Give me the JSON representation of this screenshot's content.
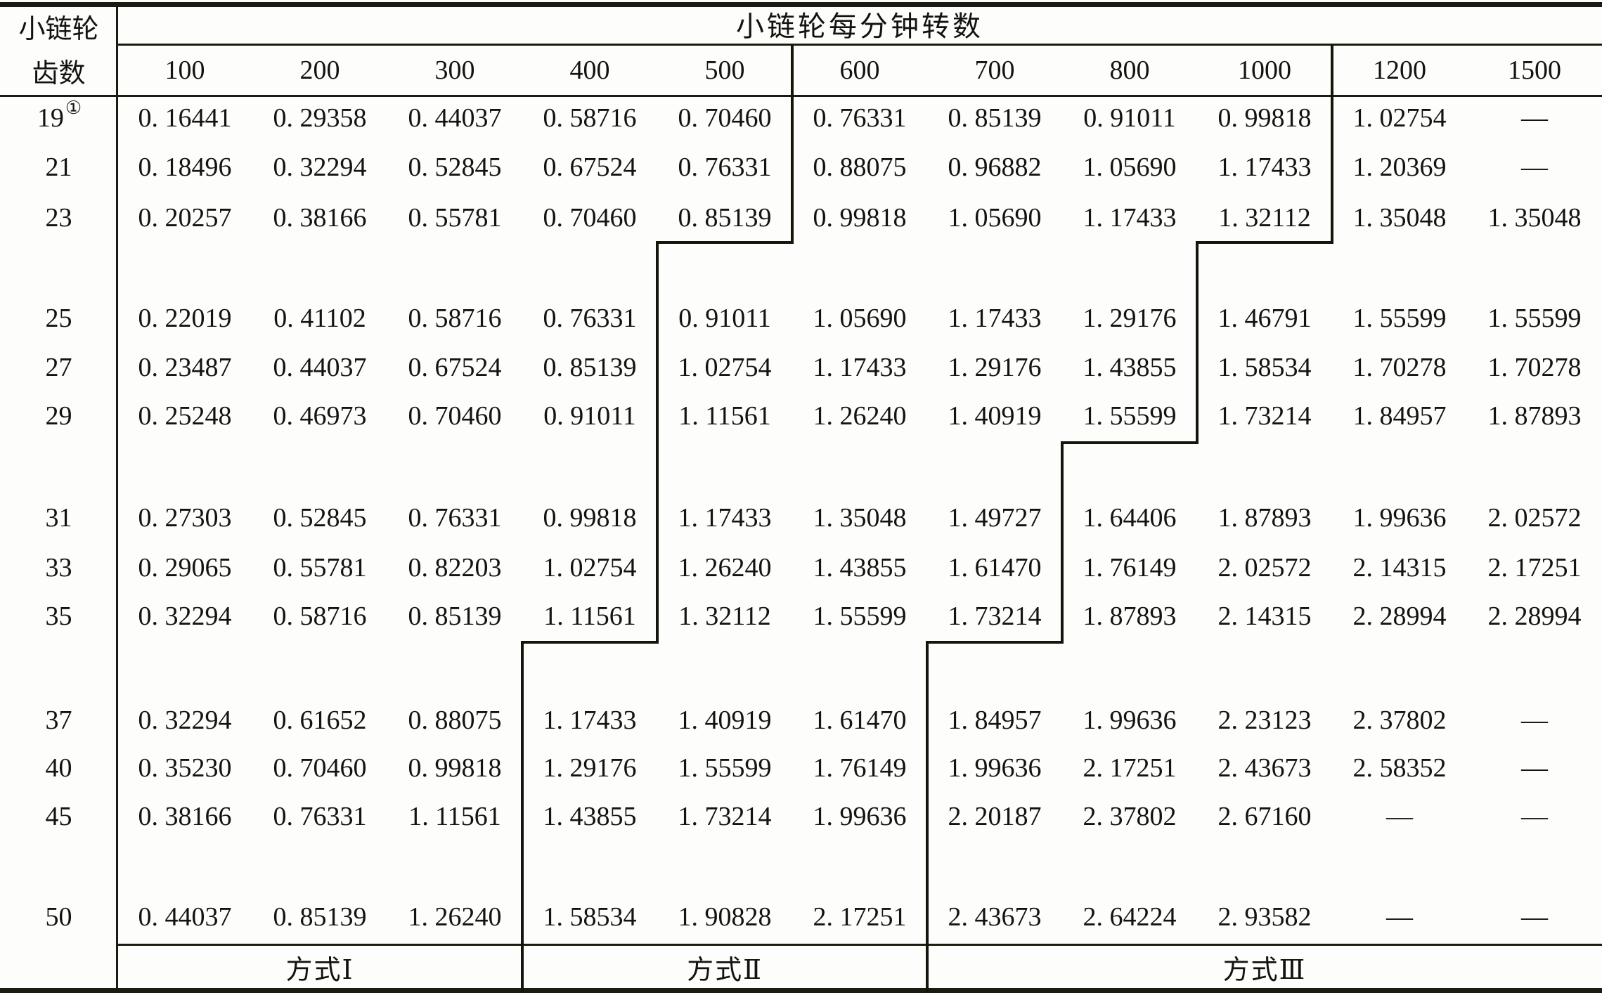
{
  "table": {
    "corner_header": {
      "line1": "小链轮",
      "line2": "齿数"
    },
    "main_header": "小链轮每分钟转数",
    "col_headers": [
      "100",
      "200",
      "300",
      "400",
      "500",
      "600",
      "700",
      "800",
      "1000",
      "1200",
      "1500"
    ],
    "rows": [
      {
        "teeth": "19",
        "footnote": "①",
        "values": [
          "0. 16441",
          "0. 29358",
          "0. 44037",
          "0. 58716",
          "0. 70460",
          "0. 76331",
          "0. 85139",
          "0. 91011",
          "0. 99818",
          "1. 02754",
          "—"
        ]
      },
      {
        "teeth": "21",
        "footnote": "",
        "values": [
          "0. 18496",
          "0. 32294",
          "0. 52845",
          "0. 67524",
          "0. 76331",
          "0. 88075",
          "0. 96882",
          "1. 05690",
          "1. 17433",
          "1. 20369",
          "—"
        ]
      },
      {
        "teeth": "23",
        "footnote": "",
        "values": [
          "0. 20257",
          "0. 38166",
          "0. 55781",
          "0. 70460",
          "0. 85139",
          "0. 99818",
          "1. 05690",
          "1. 17433",
          "1. 32112",
          "1. 35048",
          "1. 35048"
        ]
      },
      {
        "teeth": "25",
        "footnote": "",
        "values": [
          "0. 22019",
          "0. 41102",
          "0. 58716",
          "0. 76331",
          "0. 91011",
          "1. 05690",
          "1. 17433",
          "1. 29176",
          "1. 46791",
          "1. 55599",
          "1. 55599"
        ]
      },
      {
        "teeth": "27",
        "footnote": "",
        "values": [
          "0. 23487",
          "0. 44037",
          "0. 67524",
          "0. 85139",
          "1. 02754",
          "1. 17433",
          "1. 29176",
          "1. 43855",
          "1. 58534",
          "1. 70278",
          "1. 70278"
        ]
      },
      {
        "teeth": "29",
        "footnote": "",
        "values": [
          "0. 25248",
          "0. 46973",
          "0. 70460",
          "0. 91011",
          "1. 11561",
          "1. 26240",
          "1. 40919",
          "1. 55599",
          "1. 73214",
          "1. 84957",
          "1. 87893"
        ]
      },
      {
        "teeth": "31",
        "footnote": "",
        "values": [
          "0. 27303",
          "0. 52845",
          "0. 76331",
          "0. 99818",
          "1. 17433",
          "1. 35048",
          "1. 49727",
          "1. 64406",
          "1. 87893",
          "1. 99636",
          "2. 02572"
        ]
      },
      {
        "teeth": "33",
        "footnote": "",
        "values": [
          "0. 29065",
          "0. 55781",
          "0. 82203",
          "1. 02754",
          "1. 26240",
          "1. 43855",
          "1. 61470",
          "1. 76149",
          "2. 02572",
          "2. 14315",
          "2. 17251"
        ]
      },
      {
        "teeth": "35",
        "footnote": "",
        "values": [
          "0. 32294",
          "0. 58716",
          "0. 85139",
          "1. 11561",
          "1. 32112",
          "1. 55599",
          "1. 73214",
          "1. 87893",
          "2. 14315",
          "2. 28994",
          "2. 28994"
        ]
      },
      {
        "teeth": "37",
        "footnote": "",
        "values": [
          "0. 32294",
          "0. 61652",
          "0. 88075",
          "1. 17433",
          "1. 40919",
          "1. 61470",
          "1. 84957",
          "1. 99636",
          "2. 23123",
          "2. 37802",
          "—"
        ]
      },
      {
        "teeth": "40",
        "footnote": "",
        "values": [
          "0. 35230",
          "0. 70460",
          "0. 99818",
          "1. 29176",
          "1. 55599",
          "1. 76149",
          "1. 99636",
          "2. 17251",
          "2. 43673",
          "2. 58352",
          "—"
        ]
      },
      {
        "teeth": "45",
        "footnote": "",
        "values": [
          "0. 38166",
          "0. 76331",
          "1. 11561",
          "1. 43855",
          "1. 73214",
          "1. 99636",
          "2. 20187",
          "2. 37802",
          "2. 67160",
          "—",
          "—"
        ]
      },
      {
        "teeth": "50",
        "footnote": "",
        "values": [
          "0. 44037",
          "0. 85139",
          "1. 26240",
          "1. 58534",
          "1. 90828",
          "2. 17251",
          "2. 43673",
          "2. 64224",
          "2. 93582",
          "—",
          "—"
        ]
      }
    ],
    "methods": [
      {
        "label": "方式Ⅰ"
      },
      {
        "label": "方式Ⅱ"
      },
      {
        "label": "方式Ⅲ"
      }
    ],
    "colors": {
      "ink": "#15150c",
      "paper": "#fdfdfb"
    }
  }
}
